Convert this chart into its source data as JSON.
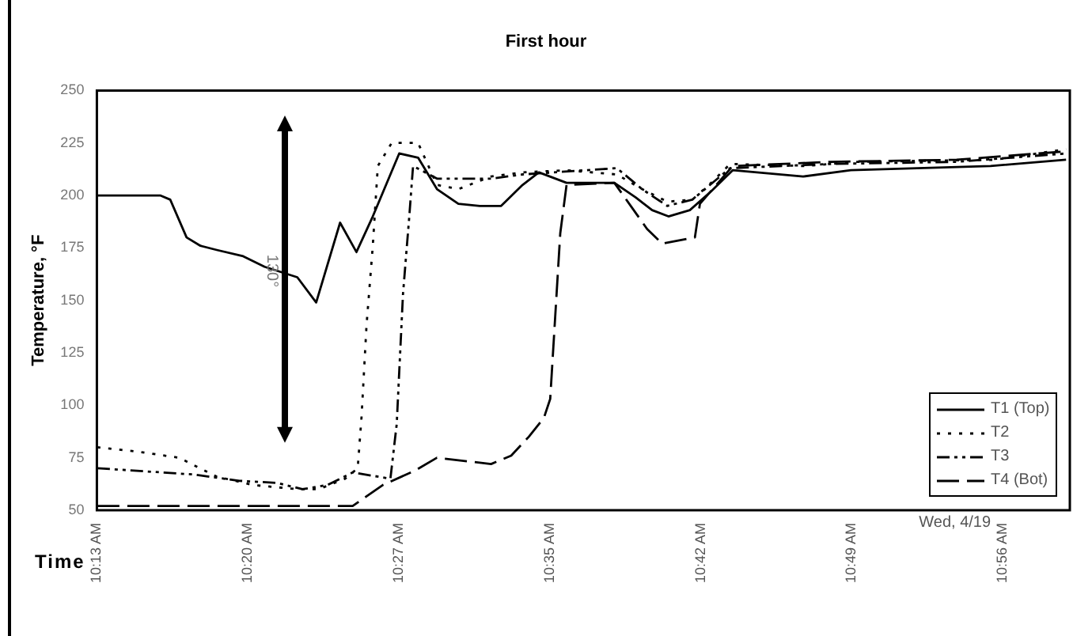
{
  "chart_data": {
    "type": "line",
    "title": "First hour",
    "xlabel": "Time",
    "ylabel": "Temperature, °F",
    "xlim": [
      10.2167,
      10.99
    ],
    "xticks": [
      {
        "value": 10.2167,
        "label": "10:13 AM"
      },
      {
        "value": 10.3367,
        "label": "10:20 AM"
      },
      {
        "value": 10.4567,
        "label": "10:27 AM"
      },
      {
        "value": 10.5767,
        "label": "10:35 AM"
      },
      {
        "value": 10.6967,
        "label": "10:42 AM"
      },
      {
        "value": 10.8167,
        "label": "10:49 AM"
      },
      {
        "value": 10.9367,
        "label": "10:56 AM"
      }
    ],
    "ylim": [
      50,
      250
    ],
    "yticks": [
      50,
      75,
      100,
      125,
      150,
      175,
      200,
      225,
      250
    ],
    "grid": false,
    "legend": "bottom right",
    "marker": "none",
    "series": [
      {
        "name": "T1 (Top)",
        "color": "#000000",
        "line_style": "solid",
        "x": [
          10.217,
          10.267,
          10.275,
          10.288,
          10.299,
          10.312,
          10.333,
          10.35,
          10.376,
          10.391,
          10.41,
          10.423,
          10.436,
          10.457,
          10.472,
          10.487,
          10.504,
          10.521,
          10.538,
          10.555,
          10.568,
          10.59,
          10.628,
          10.645,
          10.658,
          10.671,
          10.688,
          10.705,
          10.722,
          10.778,
          10.816,
          10.927,
          10.987
        ],
        "values": [
          200,
          200,
          198,
          180,
          176,
          174,
          171,
          166,
          161,
          149,
          187,
          173,
          190,
          220,
          218,
          203,
          196,
          195,
          195,
          205,
          211,
          206,
          206,
          199,
          193,
          190,
          193,
          202,
          212,
          209,
          212,
          214,
          217
        ]
      },
      {
        "name": "T2",
        "color": "#000000",
        "line_style": "dotted",
        "x": [
          10.217,
          10.248,
          10.282,
          10.312,
          10.341,
          10.376,
          10.393,
          10.414,
          10.424,
          10.427,
          10.431,
          10.436,
          10.44,
          10.451,
          10.472,
          10.487,
          10.504,
          10.53,
          10.555,
          10.59,
          10.63,
          10.65,
          10.67,
          10.69,
          10.705,
          10.72,
          10.78,
          10.82,
          10.93,
          10.987
        ],
        "values": [
          80,
          78,
          75,
          66,
          62,
          60,
          60,
          65,
          70,
          94,
          138,
          176,
          214,
          225,
          225,
          205,
          203,
          209,
          211,
          212,
          210,
          203,
          197,
          198,
          206,
          215,
          214,
          216,
          217,
          222
        ]
      },
      {
        "name": "T3",
        "color": "#000000",
        "line_style": "dashdot",
        "x": [
          10.217,
          10.294,
          10.33,
          10.36,
          10.38,
          10.4,
          10.42,
          10.45,
          10.455,
          10.46,
          10.465,
          10.468,
          10.487,
          10.53,
          10.555,
          10.63,
          10.65,
          10.67,
          10.69,
          10.72,
          10.8,
          10.9,
          10.987
        ],
        "values": [
          70,
          67,
          64,
          63,
          60,
          62,
          68,
          65,
          91,
          153,
          190,
          214,
          208,
          208,
          210,
          213,
          203,
          195,
          198,
          213,
          215,
          216,
          220
        ]
      },
      {
        "name": "T4 (Bot)",
        "color": "#000000",
        "line_style": "dashed",
        "x": [
          10.217,
          10.3,
          10.42,
          10.444,
          10.47,
          10.487,
          10.53,
          10.546,
          10.56,
          10.572,
          10.577,
          10.585,
          10.59,
          10.628,
          10.654,
          10.666,
          10.692,
          10.696,
          10.722,
          10.8,
          10.9,
          10.987
        ],
        "values": [
          52,
          52,
          52,
          62,
          69,
          75,
          72,
          76,
          85,
          94,
          103,
          182,
          205,
          206,
          184,
          177,
          180,
          196,
          214,
          216,
          217,
          221
        ]
      }
    ],
    "annotations": [
      "130°",
      "Wed, 4/19"
    ]
  }
}
